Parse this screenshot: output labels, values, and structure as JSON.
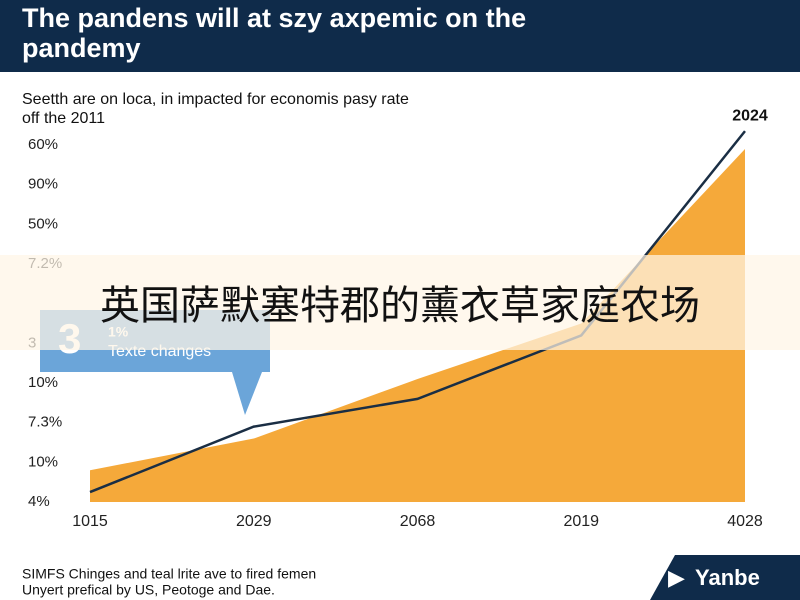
{
  "chart_data": {
    "type": "area-line",
    "title": "The pandens will at szy axpemic on the pandemy",
    "title_lines": [
      "The pandens will at szy axpemic on the",
      "pandemy"
    ],
    "subtitle_lines": [
      "Seetth are on loca, in impacted for economis pasy rate",
      "off the 2011"
    ],
    "categories": [
      "1015",
      "2029",
      "2068",
      "2019",
      "4028"
    ],
    "y_labels": [
      "4%",
      "10%",
      "7.3%",
      "10%",
      "3",
      null,
      "7.2%",
      "50%",
      "90%",
      "60%"
    ],
    "ylim": [
      0,
      9
    ],
    "series": [
      {
        "name": "area",
        "color": "#f5a93a",
        "values": [
          0.8,
          1.6,
          3.1,
          4.5,
          8.9
        ]
      },
      {
        "name": "line",
        "color": "#1a2e44",
        "values": [
          0.25,
          1.9,
          2.6,
          4.2,
          9.35
        ]
      }
    ],
    "end_label": "2024",
    "callout": {
      "big": "3",
      "small": "1%",
      "text": "Texte changes"
    },
    "banner": "英国萨默塞特郡的薰衣草家庭农场",
    "footer_lines": [
      "SIMFS Chinges and teal lrite ave to fired femen",
      "Unyert prefical by US, Peotoge and Dae."
    ],
    "logo": "Yanbe"
  }
}
